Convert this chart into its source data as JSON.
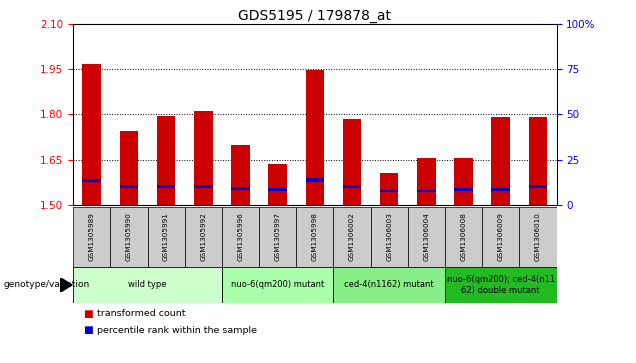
{
  "title": "GDS5195 / 179878_at",
  "samples": [
    "GSM1305989",
    "GSM1305990",
    "GSM1305991",
    "GSM1305992",
    "GSM1305996",
    "GSM1305997",
    "GSM1305998",
    "GSM1306002",
    "GSM1306003",
    "GSM1306004",
    "GSM1306008",
    "GSM1306009",
    "GSM1306010"
  ],
  "red_tops": [
    1.965,
    1.745,
    1.795,
    1.81,
    1.7,
    1.635,
    1.945,
    1.785,
    1.605,
    1.655,
    1.655,
    1.79,
    1.79
  ],
  "blue_bottoms": [
    1.575,
    1.558,
    1.558,
    1.558,
    1.55,
    1.548,
    1.578,
    1.558,
    1.542,
    1.542,
    1.548,
    1.548,
    1.558
  ],
  "blue_heights": [
    0.012,
    0.009,
    0.009,
    0.009,
    0.009,
    0.009,
    0.012,
    0.009,
    0.007,
    0.007,
    0.009,
    0.009,
    0.009
  ],
  "y_min": 1.5,
  "y_max": 2.1,
  "y_ticks_left": [
    1.5,
    1.65,
    1.8,
    1.95,
    2.1
  ],
  "y_ticks_right": [
    0,
    25,
    50,
    75,
    100
  ],
  "bar_color_red": "#cc0000",
  "bar_color_blue": "#0000cc",
  "groups": [
    {
      "label": "wild type",
      "start": 0,
      "end": 3,
      "color": "#ccffcc"
    },
    {
      "label": "nuo-6(qm200) mutant",
      "start": 4,
      "end": 6,
      "color": "#aaffaa"
    },
    {
      "label": "ced-4(n1162) mutant",
      "start": 7,
      "end": 9,
      "color": "#88ee88"
    },
    {
      "label": "nuo-6(qm200); ced-4(n11\n62) double mutant",
      "start": 10,
      "end": 12,
      "color": "#22bb22"
    }
  ],
  "legend_red_label": "transformed count",
  "legend_blue_label": "percentile rank within the sample",
  "genotype_label": "genotype/variation",
  "bar_width": 0.5
}
